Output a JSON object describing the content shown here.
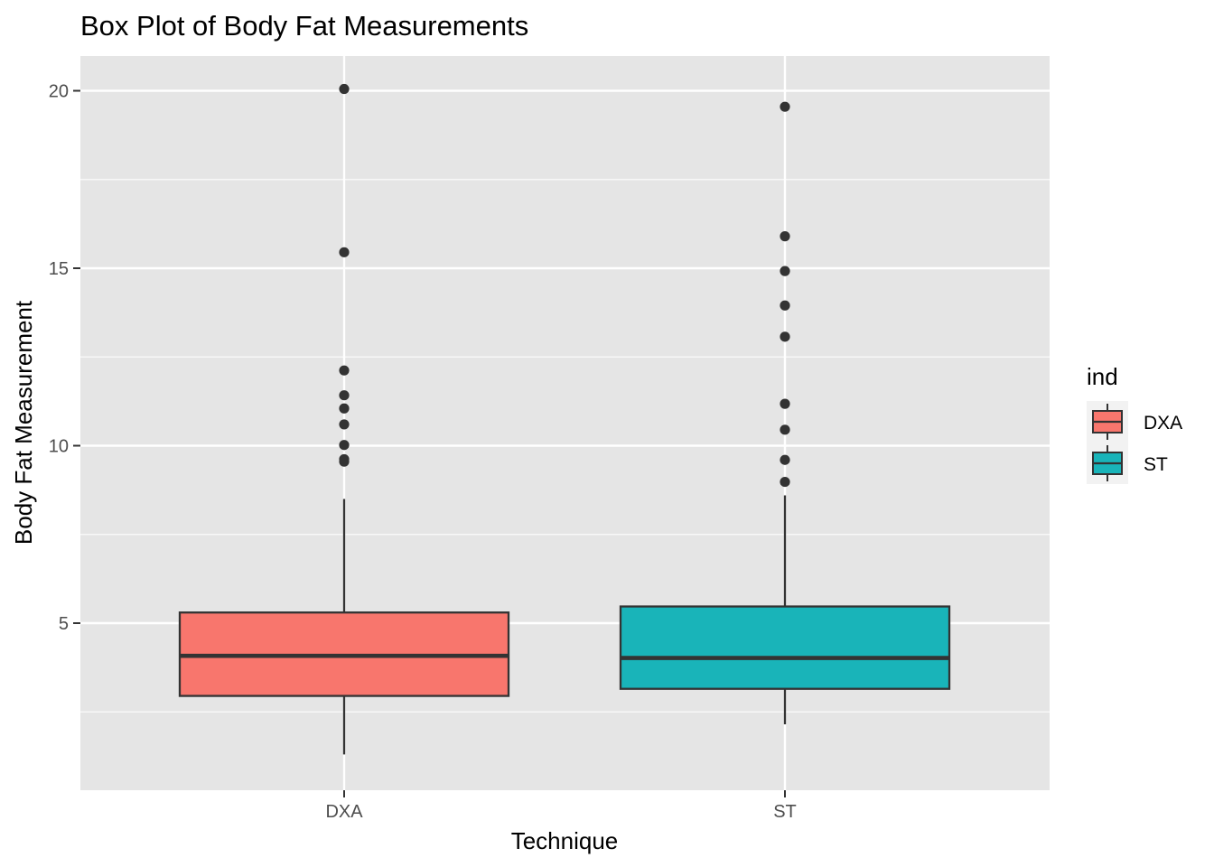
{
  "chart_data": {
    "type": "boxplot",
    "title": "Box Plot of Body Fat Measurements",
    "xlabel": "Technique",
    "ylabel": "Body Fat Measurement",
    "categories": [
      "DXA",
      "ST"
    ],
    "yticks": [
      5,
      10,
      15,
      20
    ],
    "ytick_labels": [
      "5",
      "10",
      "15",
      "20"
    ],
    "ylim": [
      0.3,
      21.0
    ],
    "grid": true,
    "legend": {
      "title": "ind",
      "position": "right",
      "entries": [
        "DXA",
        "ST"
      ]
    },
    "series": [
      {
        "name": "DXA",
        "color": "#F8766D",
        "whisker_low": 1.3,
        "q1": 2.95,
        "median": 4.08,
        "q3": 5.3,
        "whisker_high": 8.5,
        "outliers": [
          9.55,
          9.62,
          10.02,
          10.6,
          11.05,
          11.42,
          12.12,
          15.45,
          20.05
        ]
      },
      {
        "name": "ST",
        "color": "#00BFC4",
        "whisker_low": 2.15,
        "q1": 3.15,
        "median": 4.02,
        "q3": 5.47,
        "whisker_high": 8.6,
        "outliers": [
          8.98,
          9.6,
          10.45,
          11.18,
          13.07,
          13.95,
          14.92,
          15.9,
          19.55
        ]
      }
    ]
  },
  "colors": {
    "panel": "#E5E5E5",
    "grid_major": "#FFFFFF",
    "grid_minor": "#F2F2F2",
    "line": "#333333",
    "dxa_fill": "#F8766D",
    "st_fill": "#19B4B9"
  }
}
